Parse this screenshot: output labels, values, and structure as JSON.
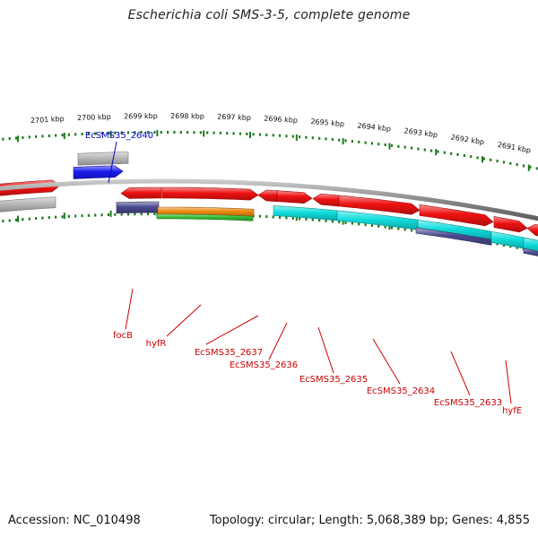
{
  "title": "Escherichia coli SMS-3-5, complete genome",
  "footer": {
    "accession": "Accession: NC_010498",
    "stats": "Topology: circular; Length: 5,068,389 bp; Genes: 4,855"
  },
  "colors": {
    "backbone": "#8a8a8a",
    "tick": "#1e7a1e",
    "label_blue": "#0000cc",
    "label_red": "#cc0000",
    "gene_red": "#ee1111",
    "gene_grey": "#b8b8b8",
    "gene_blue": "#1a1aee",
    "gene_navy": "#4a4a90",
    "gene_orange": "#ee8a10",
    "gene_green": "#33bb33",
    "gene_cyan": "#11dddd"
  },
  "scale_labels": [
    "2701 kbp",
    "2700 kbp",
    "2699 kbp",
    "2698 kbp",
    "2697 kbp",
    "2696 kbp",
    "2695 kbp",
    "2694 kbp",
    "2693 kbp",
    "2692 kbp",
    "2691 kbp"
  ],
  "gene_labels": {
    "top": [
      "EcSMS35_2640"
    ],
    "bottom": [
      "focB",
      "hyfR",
      "EcSMS35_2637",
      "EcSMS35_2636",
      "EcSMS35_2635",
      "EcSMS35_2634",
      "EcSMS35_2633",
      "hyfE"
    ]
  }
}
